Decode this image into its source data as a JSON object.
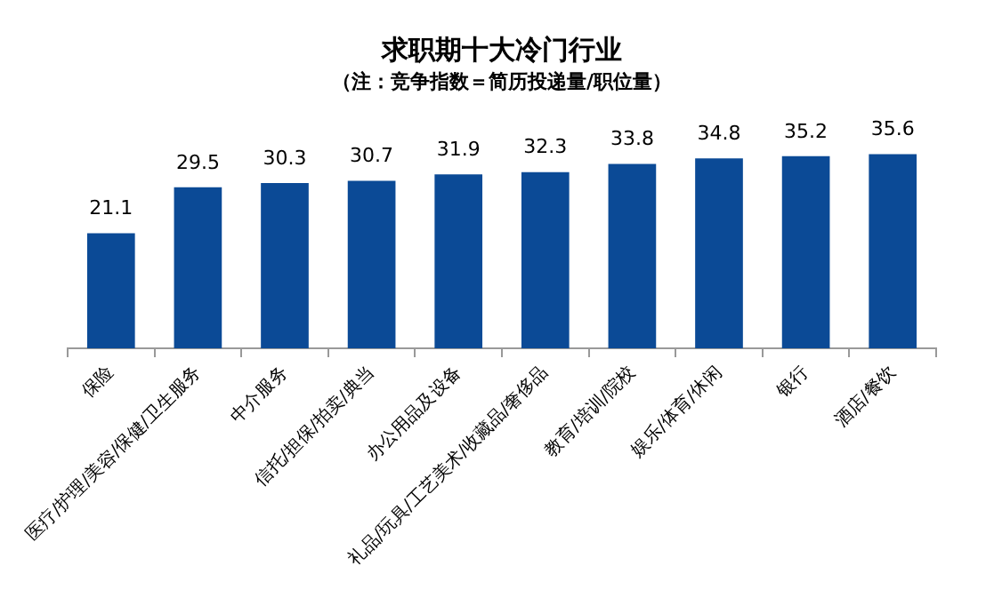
{
  "chart_data": {
    "type": "bar",
    "title": "求职期十大冷门行业",
    "subtitle": "（注：竞争指数＝简历投递量/职位量）",
    "categories": [
      "保险",
      "医疗/护理/美容/保健/卫生服务",
      "中介服务",
      "信托/担保/拍卖/典当",
      "办公用品及设备",
      "礼品/玩具/工艺美术/收藏品/奢侈品",
      "教育/培训/院校",
      "娱乐/体育/休闲",
      "银行",
      "酒店/餐饮"
    ],
    "values": [
      21.1,
      29.5,
      30.3,
      30.7,
      31.9,
      32.3,
      33.8,
      34.8,
      35.2,
      35.6
    ],
    "color": "#0b4a96",
    "data_labels": true,
    "legend": false,
    "grid": false
  }
}
